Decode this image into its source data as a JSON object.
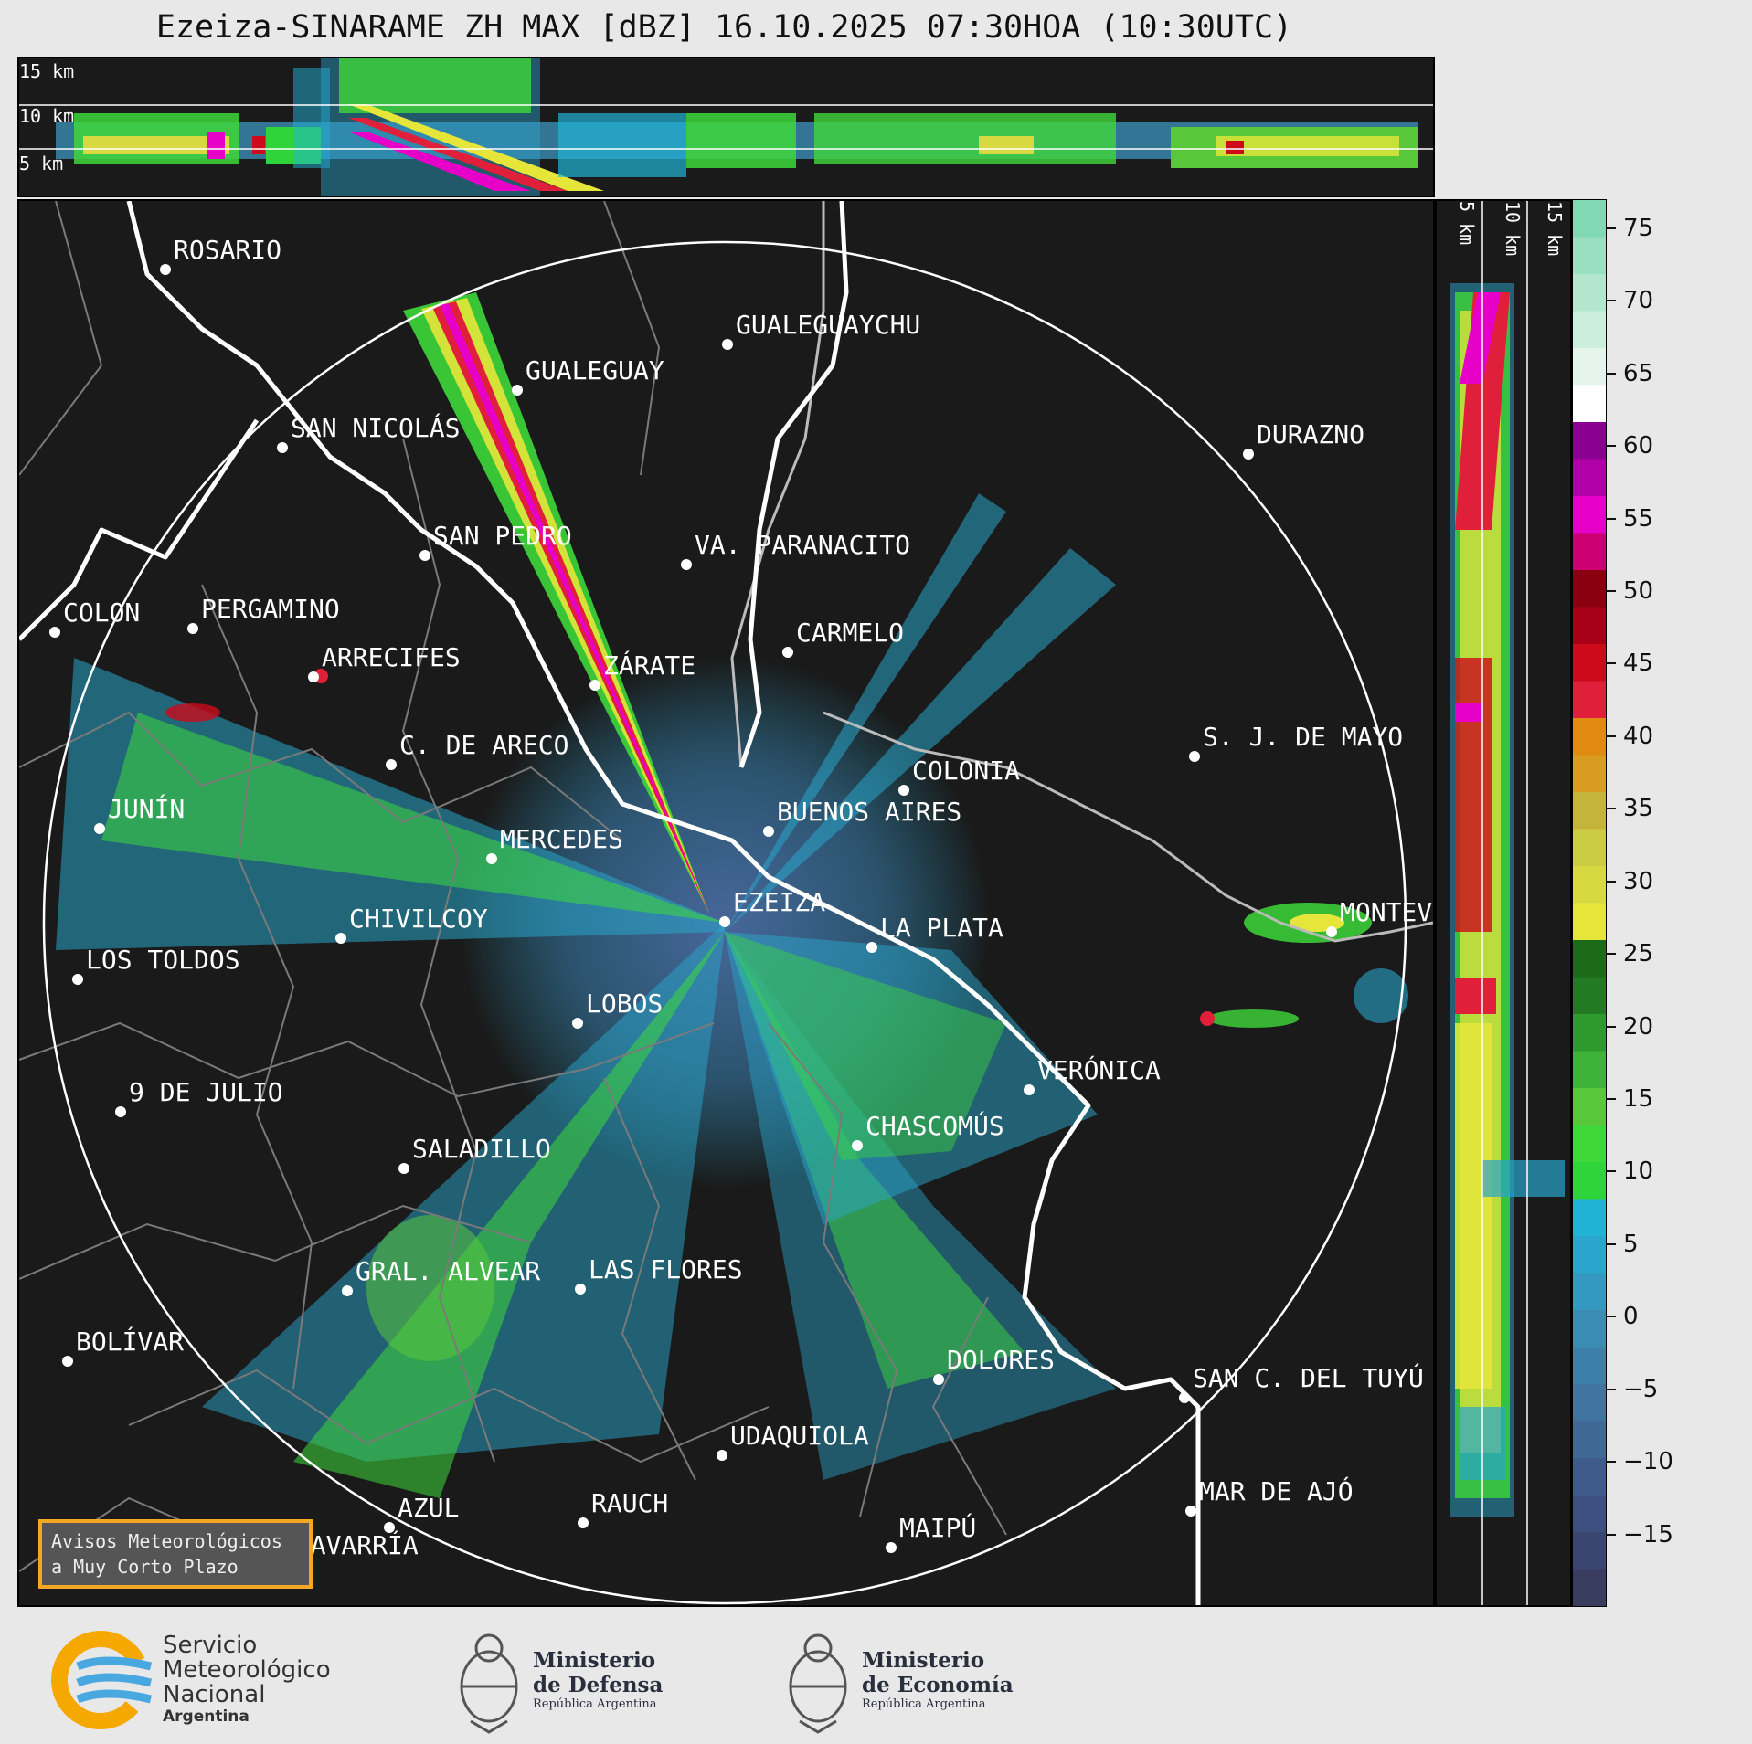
{
  "title": "Ezeiza-SINARAME ZH MAX [dBZ] 16.10.2025 07:30HOA (10:30UTC)",
  "top_strip": {
    "labels": [
      "15 km",
      "10 km",
      "5 km"
    ]
  },
  "side_strip": {
    "labels": [
      "5 km",
      "10 km",
      "15 km"
    ]
  },
  "colorbar": {
    "unit": "dBZ",
    "ticks": [
      "75",
      "70",
      "65",
      "60",
      "55",
      "50",
      "45",
      "40",
      "35",
      "30",
      "25",
      "20",
      "15",
      "10",
      "5",
      "0",
      "−5",
      "−10",
      "−15"
    ],
    "colors": [
      "#383c5f",
      "#3b4670",
      "#3d5080",
      "#3f5b8c",
      "#406896",
      "#3f74a0",
      "#3c80aa",
      "#3a8cb4",
      "#3498c0",
      "#2aa5cb",
      "#21b3d6",
      "#2fd43a",
      "#3ed83a",
      "#58c83a",
      "#3fb23a",
      "#2e9a2e",
      "#227a22",
      "#1b6b1b",
      "#e6e63a",
      "#d8d840",
      "#cccc44",
      "#c4b43c",
      "#d89c20",
      "#e08a12",
      "#e0203a",
      "#cc0a1c",
      "#a80016",
      "#8a0010",
      "#cc0070",
      "#e600c8",
      "#b000a8",
      "#8a0090",
      "#ffffff",
      "#e6f5ec",
      "#cceedd",
      "#b3e6cc",
      "#99e0c0",
      "#80d9b3"
    ]
  },
  "map": {
    "cities": [
      {
        "name": "ROSARIO"
      },
      {
        "name": "GUALEGUAYCHU"
      },
      {
        "name": "GUALEGUAY"
      },
      {
        "name": "SAN NICOLÁS"
      },
      {
        "name": "DURAZNO"
      },
      {
        "name": "SAN PEDRO"
      },
      {
        "name": "VA. PARANACITO"
      },
      {
        "name": "COLON"
      },
      {
        "name": "PERGAMINO"
      },
      {
        "name": "CARMELO"
      },
      {
        "name": "ARRECIFES"
      },
      {
        "name": "ZÁRATE"
      },
      {
        "name": "S. J. DE MAYO"
      },
      {
        "name": "C. DE ARECO"
      },
      {
        "name": "COLONIA"
      },
      {
        "name": "JUNÍN"
      },
      {
        "name": "BUENOS AIRES"
      },
      {
        "name": "MERCEDES"
      },
      {
        "name": "EZEIZA"
      },
      {
        "name": "MONTEVIDEO"
      },
      {
        "name": "CHIVILCOY"
      },
      {
        "name": "LA PLATA"
      },
      {
        "name": "LOS TOLDOS"
      },
      {
        "name": "LOBOS"
      },
      {
        "name": "VERÓNICA"
      },
      {
        "name": "9 DE JULIO"
      },
      {
        "name": "CHASCOMÚS"
      },
      {
        "name": "SALADILLO"
      },
      {
        "name": "GRAL. ALVEAR"
      },
      {
        "name": "LAS FLORES"
      },
      {
        "name": "BOLÍVAR"
      },
      {
        "name": "DOLORES"
      },
      {
        "name": "SAN C. DEL TUYÚ"
      },
      {
        "name": "UDAQUIOLA"
      },
      {
        "name": "MAR DE AJÓ"
      },
      {
        "name": "AZUL"
      },
      {
        "name": "RAUCH"
      },
      {
        "name": "OLAVARRÍA"
      },
      {
        "name": "MAIPÚ"
      }
    ]
  },
  "avisos": {
    "line1": "Avisos Meteorológicos",
    "line2": "a Muy Corto Plazo"
  },
  "footer": {
    "smn": {
      "line1": "Servicio",
      "line2": "Meteorológico",
      "line3": "Nacional",
      "line4": "Argentina"
    },
    "defensa": {
      "line1": "Ministerio",
      "line2": "de Defensa",
      "line3": "República Argentina"
    },
    "economia": {
      "line1": "Ministerio",
      "line2": "de Economía",
      "line3": "República Argentina"
    }
  }
}
